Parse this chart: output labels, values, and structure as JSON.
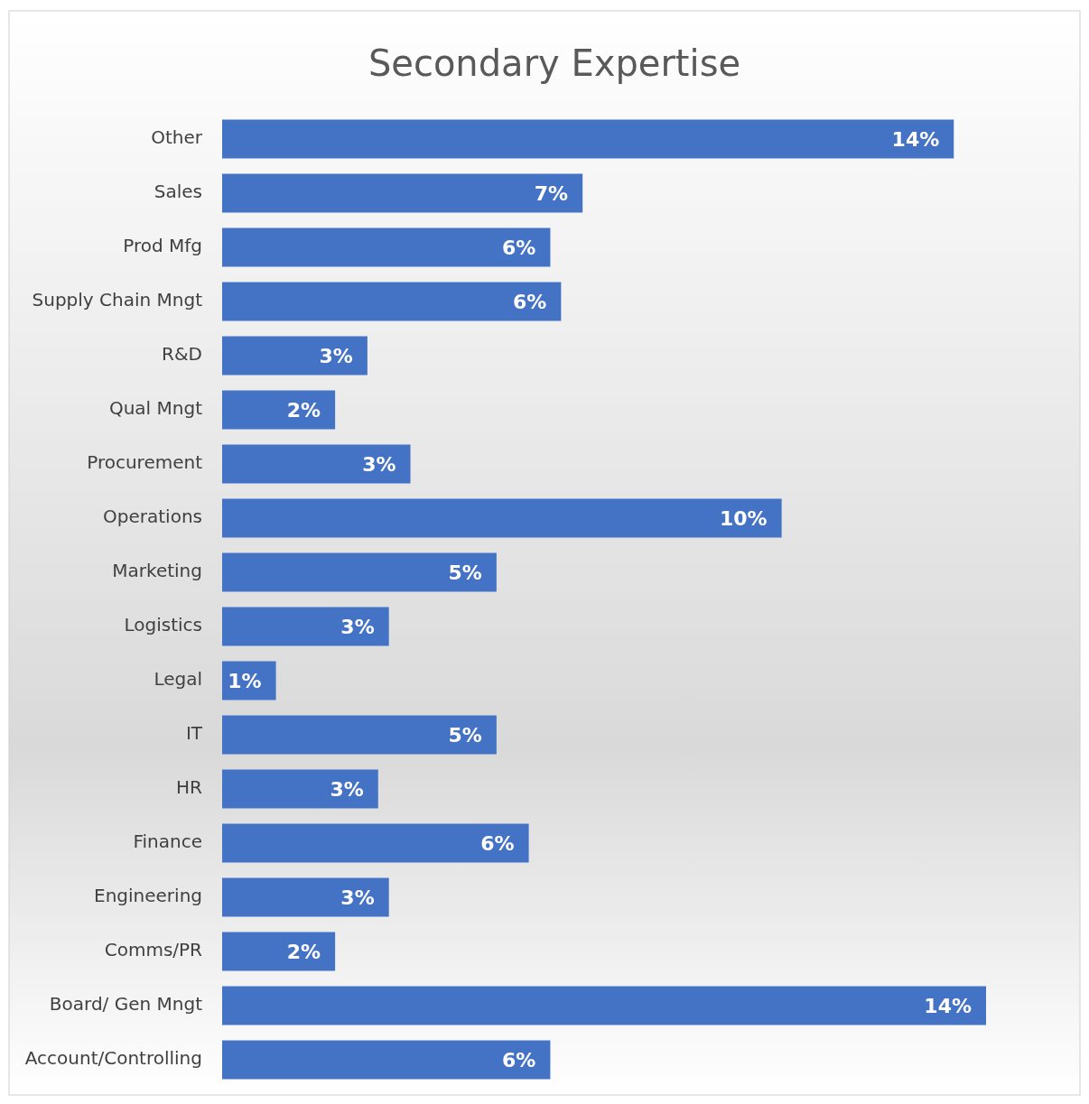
{
  "chart_data": {
    "type": "bar",
    "orientation": "horizontal",
    "title": "Secondary Expertise",
    "categories": [
      "Other",
      "Sales",
      "Prod Mfg",
      "Supply Chain Mngt",
      "R&D",
      "Qual Mngt",
      "Procurement",
      "Operations",
      "Marketing",
      "Logistics",
      "Legal",
      "IT",
      "HR",
      "Finance",
      "Engineering",
      "Comms/PR",
      "Board/ Gen Mngt",
      "Account/Controlling"
    ],
    "values": [
      13.6,
      6.7,
      6.1,
      6.3,
      2.7,
      2.1,
      3.5,
      10.4,
      5.1,
      3.1,
      1.0,
      5.1,
      2.9,
      5.7,
      3.1,
      2.1,
      14.2,
      6.1
    ],
    "value_labels": [
      "14%",
      "7%",
      "6%",
      "6%",
      "3%",
      "2%",
      "3%",
      "10%",
      "5%",
      "3%",
      "1%",
      "5%",
      "3%",
      "6%",
      "3%",
      "2%",
      "14%",
      "6%"
    ],
    "color": "#4472c4"
  }
}
